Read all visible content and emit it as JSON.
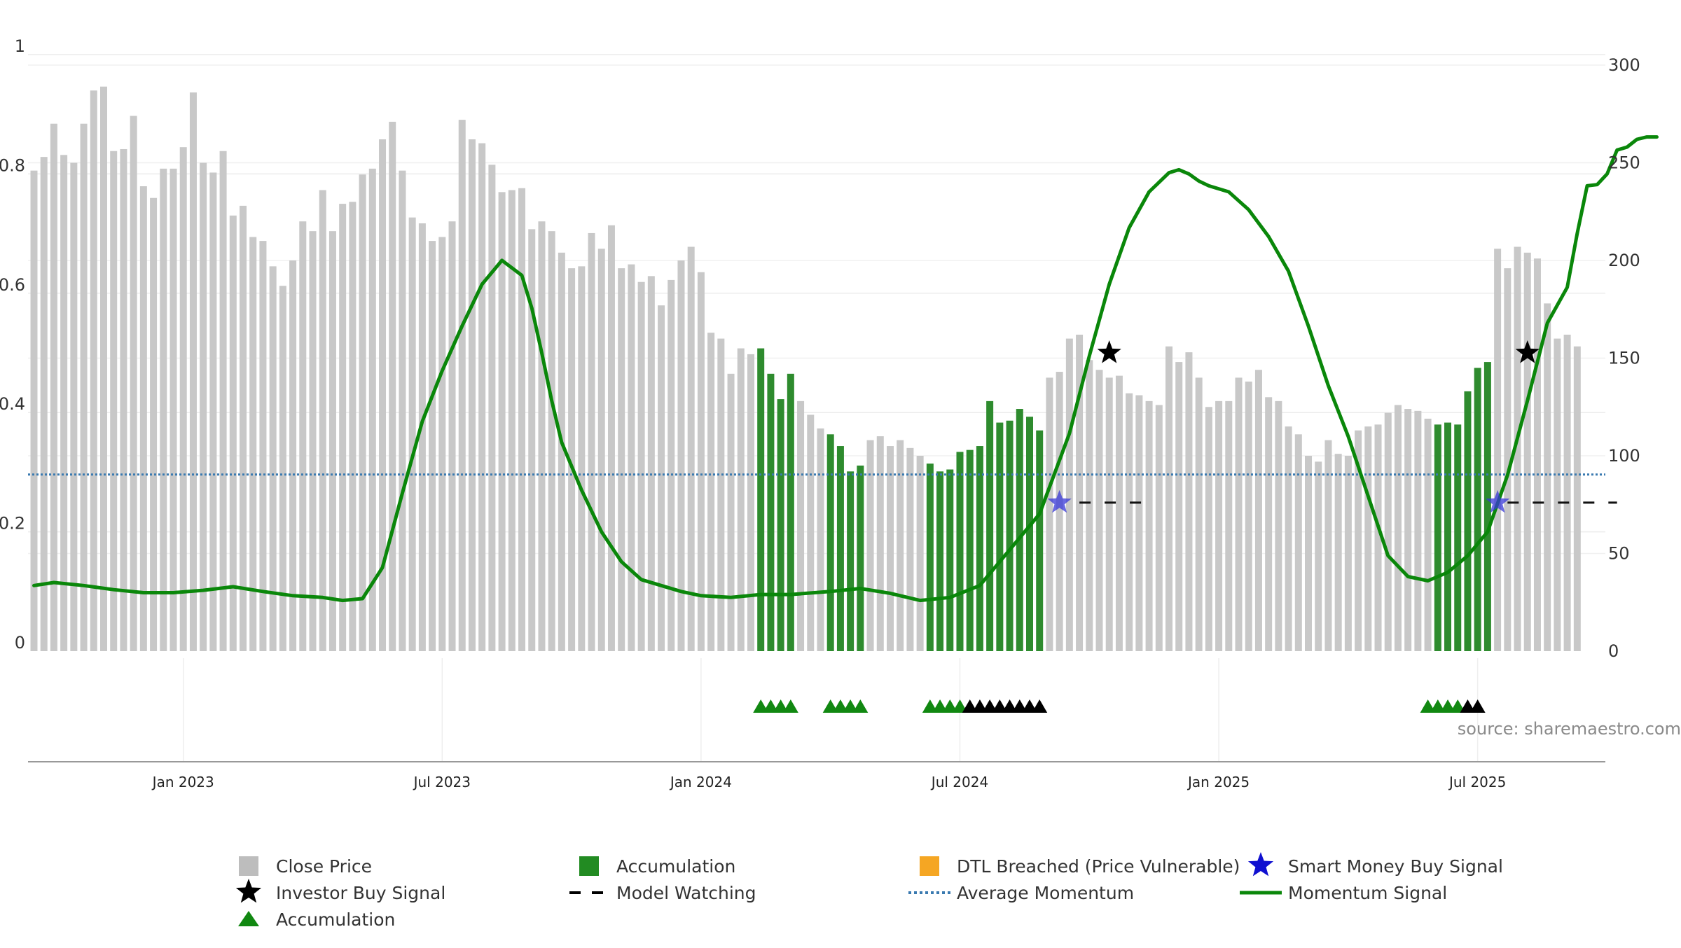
{
  "chart_data": {
    "type": "bar",
    "x_axis": {
      "tick_labels": [
        "Jan 2023",
        "Jul 2023",
        "Jan 2024",
        "Jul 2024",
        "Jan 2025",
        "Jul 2025"
      ],
      "tick_weeks": [
        15,
        41,
        67,
        93,
        119,
        145
      ]
    },
    "left_axis": {
      "range": [
        0,
        1
      ],
      "tick_labels": [
        "0",
        "0.2",
        "0.4",
        "0.6",
        "0.8",
        "1"
      ]
    },
    "right_axis": {
      "range": [
        0,
        300
      ],
      "tick_labels": [
        "0",
        "50",
        "100",
        "150",
        "200",
        "250",
        "300"
      ]
    },
    "close_price": {
      "name": "Close Price",
      "values": [
        246,
        253,
        270,
        254,
        250,
        270,
        287,
        289,
        256,
        257,
        274,
        238,
        232,
        247,
        247,
        258,
        286,
        250,
        245,
        256,
        223,
        228,
        212,
        210,
        197,
        187,
        200,
        220,
        215,
        236,
        215,
        229,
        230,
        244,
        247,
        262,
        271,
        246,
        222,
        219,
        210,
        212,
        220,
        272,
        262,
        260,
        249,
        235,
        236,
        237,
        216,
        220,
        215,
        204,
        196,
        197,
        214,
        206,
        218,
        196,
        198,
        189,
        192,
        177,
        190,
        200,
        207,
        194,
        163,
        160,
        142,
        155,
        152,
        155,
        142,
        129,
        142,
        128,
        121,
        114,
        111,
        105,
        92,
        95,
        108,
        110,
        105,
        108,
        104,
        100,
        96,
        92,
        93,
        102,
        103,
        105,
        128,
        117,
        118,
        124,
        120,
        113,
        140,
        143,
        160,
        162,
        149,
        144,
        140,
        141,
        132,
        131,
        128,
        126,
        156,
        148,
        153,
        140,
        125,
        128,
        128,
        140,
        138,
        144,
        130,
        128,
        115,
        111,
        100,
        97,
        108,
        101,
        100,
        113,
        115,
        116,
        122,
        126,
        124,
        123,
        119,
        116,
        117,
        116,
        133,
        145,
        148,
        206,
        196,
        207,
        204,
        201,
        178,
        160,
        162,
        156
      ],
      "color": "#c8c8c8"
    },
    "accumulation_bar_weeks": [
      73,
      74,
      75,
      76,
      80,
      81,
      82,
      83,
      90,
      91,
      92,
      93,
      94,
      95,
      96,
      97,
      98,
      99,
      100,
      101,
      141,
      142,
      143,
      144,
      145,
      146
    ],
    "accumulation_color": "#2e8b2e",
    "momentum_signal": {
      "name": "Momentum Signal",
      "weeks": [
        0,
        2,
        5,
        8,
        11,
        14,
        17,
        20,
        23,
        26,
        29,
        31,
        33,
        35,
        37,
        39,
        41,
        43,
        45,
        47,
        49,
        50,
        51,
        52,
        53,
        55,
        57,
        59,
        61,
        63,
        65,
        67,
        70,
        73,
        76,
        80,
        83,
        86,
        89,
        92,
        95,
        98,
        101,
        104,
        106,
        108,
        110,
        112,
        114,
        115,
        116,
        117,
        118,
        120,
        122,
        124,
        126,
        128,
        130,
        132,
        134,
        136,
        138,
        140,
        142,
        144,
        146,
        148,
        150,
        152,
        154,
        155,
        156,
        157,
        158,
        159,
        160,
        161,
        162,
        163
      ],
      "values": [
        0.11,
        0.115,
        0.11,
        0.103,
        0.098,
        0.098,
        0.102,
        0.108,
        0.1,
        0.093,
        0.09,
        0.085,
        0.088,
        0.14,
        0.265,
        0.385,
        0.47,
        0.545,
        0.615,
        0.655,
        0.63,
        0.575,
        0.5,
        0.42,
        0.35,
        0.27,
        0.2,
        0.15,
        0.12,
        0.11,
        0.1,
        0.093,
        0.09,
        0.095,
        0.095,
        0.1,
        0.105,
        0.097,
        0.085,
        0.09,
        0.11,
        0.17,
        0.23,
        0.365,
        0.495,
        0.615,
        0.71,
        0.77,
        0.802,
        0.807,
        0.8,
        0.788,
        0.78,
        0.77,
        0.74,
        0.695,
        0.637,
        0.545,
        0.445,
        0.36,
        0.26,
        0.16,
        0.125,
        0.118,
        0.132,
        0.16,
        0.2,
        0.295,
        0.42,
        0.55,
        0.61,
        0.7,
        0.78,
        0.782,
        0.8,
        0.84,
        0.845,
        0.858,
        0.862,
        0.862
      ],
      "color": "#0a870a"
    },
    "average_momentum": {
      "name": "Average Momentum",
      "value": 0.296,
      "color": "#3a7ab0"
    },
    "model_watching": {
      "name": "Model Watching",
      "value": 0.249,
      "segments": [
        [
          105,
          112
        ],
        [
          148,
          159
        ]
      ]
    },
    "investor_buy_signals": {
      "name": "Investor Buy Signal",
      "weeks": [
        108,
        150
      ],
      "value": 0.5
    },
    "smart_money_signals": {
      "name": "Smart Money Buy Signal",
      "weeks": [
        103,
        147
      ],
      "value": 0.249
    },
    "accumulation_markers": {
      "name": "Accumulation",
      "green_weeks": [
        73,
        74,
        75,
        76,
        80,
        81,
        82,
        83,
        90,
        91,
        92,
        93,
        140,
        141,
        142,
        143
      ],
      "black_weeks": [
        94,
        95,
        96,
        97,
        98,
        99,
        100,
        101,
        144,
        145
      ]
    },
    "legend": [
      {
        "label": "Close Price",
        "swatch": "square",
        "color": "#bdbdbd"
      },
      {
        "label": "Accumulation",
        "swatch": "square",
        "color": "#228b22"
      },
      {
        "label": "DTL Breached (Price Vulnerable)",
        "swatch": "square",
        "color": "#f5a623"
      },
      {
        "label": "Smart Money Buy Signal",
        "swatch": "star",
        "color": "#1010d0"
      },
      {
        "label": "Investor Buy Signal",
        "swatch": "star",
        "color": "#000000"
      },
      {
        "label": "Model Watching",
        "swatch": "dash",
        "color": "#000000"
      },
      {
        "label": "Average Momentum",
        "swatch": "dot",
        "color": "#3a7ab0"
      },
      {
        "label": "Momentum Signal",
        "swatch": "line",
        "color": "#0a870a"
      },
      {
        "label": "Accumulation",
        "swatch": "triangle",
        "color": "#118811"
      }
    ],
    "source_label": "source: sharemaestro.com"
  }
}
